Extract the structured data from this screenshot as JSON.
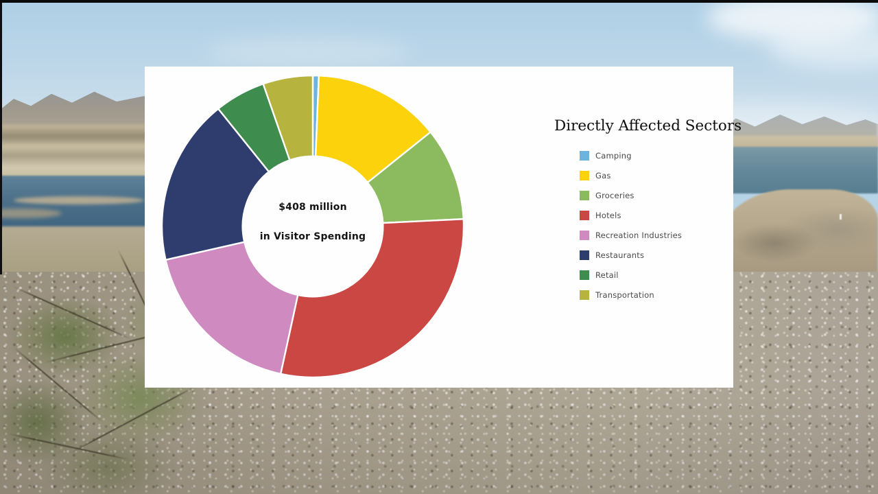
{
  "scene": {
    "description": "news video frame of desert lake landscape with chart overlay card"
  },
  "chart_data": {
    "type": "pie",
    "subtype": "donut",
    "title": "Directly Affected Sectors",
    "center_label": [
      "$408 million",
      "in Visitor Spending"
    ],
    "donut_hole_ratio": 0.465,
    "legend_position": "right",
    "start_angle_deg": 0,
    "direction": "clockwise",
    "slices": [
      {
        "label": "Camping",
        "percent": 0.6,
        "start_deg": 0,
        "end_deg": 2.3,
        "color": "#6cb3dd"
      },
      {
        "label": "Gas",
        "percent": 13.6,
        "start_deg": 2.3,
        "end_deg": 51.3,
        "color": "#fcd20c"
      },
      {
        "label": "Groceries",
        "percent": 10.0,
        "start_deg": 51.3,
        "end_deg": 87.2,
        "color": "#8cba5f"
      },
      {
        "label": "Hotels",
        "percent": 29.2,
        "start_deg": 87.2,
        "end_deg": 192.3,
        "color": "#cb4744"
      },
      {
        "label": "Recreation Industries",
        "percent": 18.0,
        "start_deg": 192.3,
        "end_deg": 257.2,
        "color": "#cf8bc0"
      },
      {
        "label": "Restaurants",
        "percent": 17.8,
        "start_deg": 257.2,
        "end_deg": 321.2,
        "color": "#2e3d6e"
      },
      {
        "label": "Retail",
        "percent": 5.4,
        "start_deg": 321.2,
        "end_deg": 340.8,
        "color": "#3f8c4f"
      },
      {
        "label": "Transportation",
        "percent": 5.3,
        "start_deg": 340.8,
        "end_deg": 360,
        "color": "#b7b33f"
      }
    ]
  }
}
